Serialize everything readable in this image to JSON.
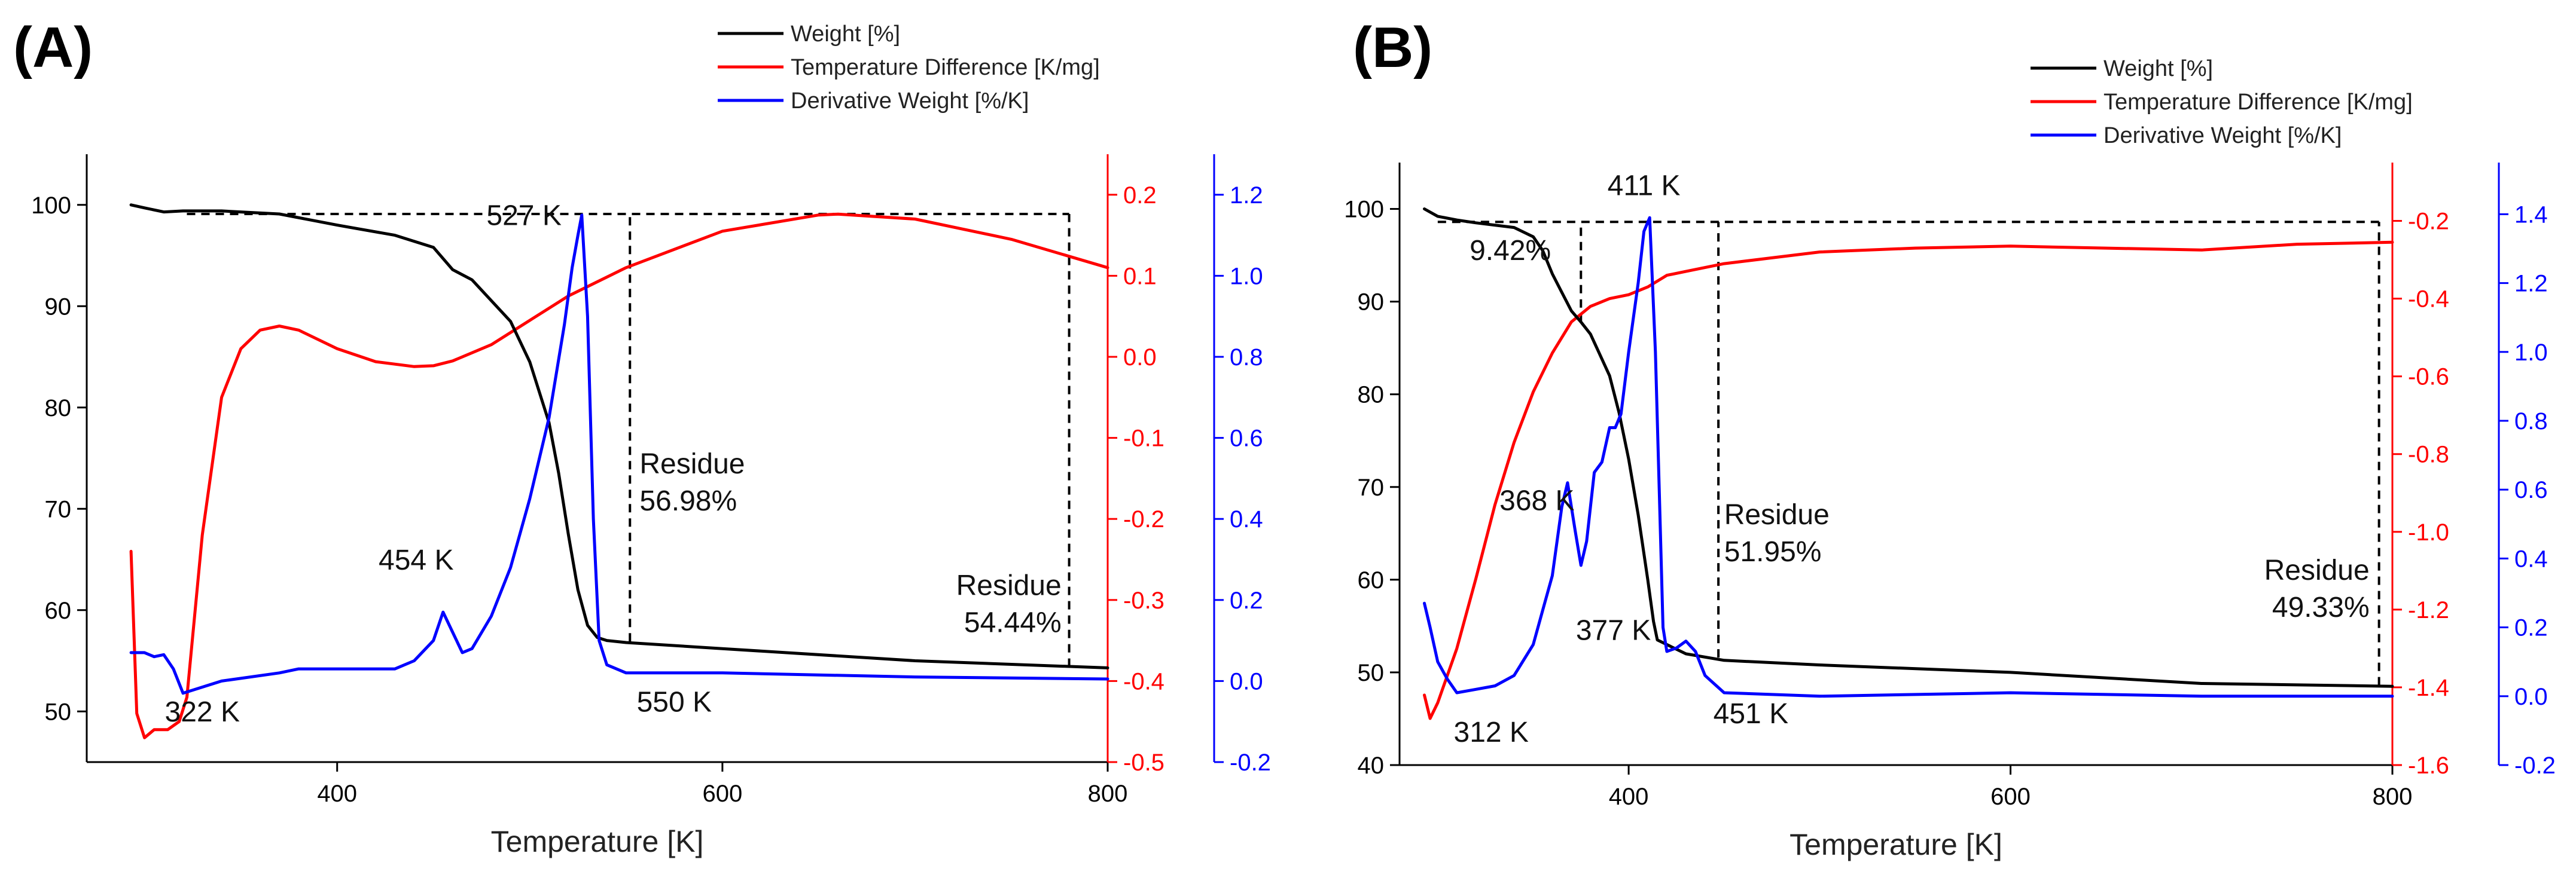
{
  "chart_data": [
    {
      "panel": "(A)",
      "type": "line",
      "xlabel": "Temperature [K]",
      "xlim": [
        270,
        800
      ],
      "xticks": [
        400,
        600,
        800
      ],
      "axes": {
        "weight": {
          "range": [
            45,
            105
          ],
          "ticks": [
            50,
            60,
            70,
            80,
            90,
            100
          ],
          "color": "#000000"
        },
        "tempdiff": {
          "range": [
            -0.5,
            0.25
          ],
          "ticks": [
            -0.5,
            -0.4,
            -0.3,
            -0.2,
            -0.1,
            0.0,
            0.1,
            0.2
          ],
          "color": "#ff0000"
        },
        "deriv": {
          "range": [
            -0.2,
            1.3
          ],
          "ticks": [
            -0.2,
            0.0,
            0.2,
            0.4,
            0.6,
            0.8,
            1.0,
            1.2
          ],
          "color": "#0000ff"
        }
      },
      "legend": [
        "Weight [%]",
        "Temperature Difference [K/mg]",
        "Derivative Weight [%/K]"
      ],
      "series": [
        {
          "name": "Weight [%]",
          "axis": "weight",
          "color": "#000000",
          "x": [
            293,
            300,
            310,
            320,
            340,
            370,
            400,
            430,
            450,
            460,
            470,
            490,
            500,
            510,
            515,
            520,
            525,
            530,
            535,
            540,
            550,
            600,
            700,
            800
          ],
          "y": [
            100,
            99.7,
            99.3,
            99.4,
            99.4,
            99.1,
            98.0,
            97.0,
            95.8,
            93.6,
            92.6,
            88.5,
            84.5,
            78.5,
            73.5,
            67.5,
            62.0,
            58.5,
            57.3,
            57.0,
            56.8,
            56.2,
            55.0,
            54.3
          ]
        },
        {
          "name": "Temperature Difference [K/mg]",
          "axis": "tempdiff",
          "color": "#ff0000",
          "x": [
            293,
            296,
            300,
            305,
            312,
            318,
            322,
            330,
            340,
            350,
            360,
            370,
            380,
            400,
            420,
            440,
            450,
            460,
            480,
            500,
            520,
            550,
            600,
            650,
            660,
            700,
            750,
            800
          ],
          "y": [
            -0.24,
            -0.44,
            -0.47,
            -0.46,
            -0.46,
            -0.45,
            -0.42,
            -0.22,
            -0.05,
            0.01,
            0.033,
            0.038,
            0.033,
            0.01,
            -0.006,
            -0.012,
            -0.011,
            -0.005,
            0.015,
            0.045,
            0.075,
            0.11,
            0.155,
            0.175,
            0.176,
            0.17,
            0.145,
            0.11
          ]
        },
        {
          "name": "Derivative Weight [%/K]",
          "axis": "deriv",
          "color": "#0000ff",
          "x": [
            293,
            300,
            305,
            310,
            315,
            320,
            340,
            370,
            380,
            400,
            430,
            440,
            450,
            455,
            460,
            465,
            470,
            480,
            490,
            500,
            510,
            518,
            522,
            525,
            527,
            530,
            533,
            536,
            540,
            550,
            600,
            700,
            800
          ],
          "y": [
            0.07,
            0.07,
            0.06,
            0.065,
            0.03,
            -0.03,
            0.0,
            0.02,
            0.03,
            0.03,
            0.03,
            0.05,
            0.1,
            0.17,
            0.12,
            0.07,
            0.08,
            0.16,
            0.28,
            0.45,
            0.65,
            0.88,
            1.02,
            1.1,
            1.15,
            0.9,
            0.4,
            0.1,
            0.04,
            0.02,
            0.02,
            0.01,
            0.005
          ]
        }
      ],
      "guides": [
        {
          "kind": "h",
          "axis": "weight",
          "y": 99.1,
          "x0": 322,
          "x1": 780
        },
        {
          "kind": "v",
          "axis": "weight",
          "x": 552,
          "y0": 56.9,
          "y1": 99.1
        },
        {
          "kind": "v",
          "axis": "weight",
          "x": 780,
          "y0": 54.4,
          "y1": 99.1
        }
      ],
      "annotations": [
        {
          "lines": [
            "527 K"
          ],
          "x": 497,
          "y": 98,
          "anchor": "middle"
        },
        {
          "lines": [
            "454 K"
          ],
          "x": 441,
          "y": 64,
          "anchor": "middle"
        },
        {
          "lines": [
            "322 K"
          ],
          "x": 330,
          "y": 49,
          "anchor": "middle"
        },
        {
          "lines": [
            "550 K"
          ],
          "x": 575,
          "y": 50,
          "anchor": "middle"
        },
        {
          "lines": [
            "Residue",
            "56.98%"
          ],
          "x": 557,
          "y": 73.5,
          "anchor": "start"
        },
        {
          "lines": [
            "Residue",
            "54.44%"
          ],
          "x": 776,
          "y": 61.5,
          "anchor": "end"
        }
      ]
    },
    {
      "panel": "(B)",
      "type": "line",
      "xlabel": "Temperature [K]",
      "xlim": [
        280,
        800
      ],
      "xticks": [
        400,
        600,
        800
      ],
      "axes": {
        "weight": {
          "range": [
            40,
            105
          ],
          "ticks": [
            40,
            50,
            60,
            70,
            80,
            90,
            100
          ],
          "color": "#000000"
        },
        "tempdiff": {
          "range": [
            -1.6,
            -0.05
          ],
          "ticks": [
            -1.6,
            -1.4,
            -1.2,
            -1.0,
            -0.8,
            -0.6,
            -0.4,
            -0.2
          ],
          "color": "#ff0000"
        },
        "deriv": {
          "range": [
            -0.2,
            1.55
          ],
          "ticks": [
            -0.2,
            0.0,
            0.2,
            0.4,
            0.6,
            0.8,
            1.0,
            1.2,
            1.4
          ],
          "color": "#0000ff"
        }
      },
      "legend": [
        "Weight [%]",
        "Temperature Difference [K/mg]",
        "Derivative Weight [%/K]"
      ],
      "series": [
        {
          "name": "Weight [%]",
          "axis": "weight",
          "color": "#000000",
          "x": [
            293,
            300,
            310,
            320,
            340,
            350,
            355,
            360,
            365,
            370,
            375,
            380,
            390,
            395,
            400,
            405,
            410,
            413,
            415,
            420,
            430,
            450,
            500,
            600,
            700,
            800
          ],
          "y": [
            100,
            99.2,
            98.8,
            98.5,
            98.0,
            97.0,
            95.5,
            93.0,
            91.0,
            89.0,
            87.8,
            86.5,
            82.0,
            78.0,
            73.0,
            67.0,
            60.0,
            55.5,
            53.5,
            53.0,
            52.0,
            51.3,
            50.8,
            50.0,
            48.8,
            48.5
          ]
        },
        {
          "name": "Temperature Difference [K/mg]",
          "axis": "tempdiff",
          "color": "#ff0000",
          "x": [
            293,
            296,
            300,
            310,
            320,
            330,
            340,
            350,
            360,
            370,
            380,
            390,
            400,
            410,
            420,
            430,
            450,
            500,
            550,
            600,
            650,
            700,
            750,
            800
          ],
          "y": [
            -1.42,
            -1.48,
            -1.44,
            -1.3,
            -1.12,
            -0.93,
            -0.77,
            -0.64,
            -0.54,
            -0.46,
            -0.42,
            -0.4,
            -0.39,
            -0.37,
            -0.34,
            -0.33,
            -0.31,
            -0.28,
            -0.27,
            -0.265,
            -0.27,
            -0.275,
            -0.26,
            -0.255
          ]
        },
        {
          "name": "Derivative Weight [%/K]",
          "axis": "deriv",
          "color": "#0000ff",
          "x": [
            293,
            296,
            300,
            305,
            310,
            320,
            330,
            340,
            350,
            355,
            360,
            365,
            368,
            372,
            375,
            378,
            382,
            386,
            390,
            393,
            396,
            400,
            405,
            408,
            411,
            414,
            416,
            418,
            420,
            425,
            430,
            435,
            440,
            450,
            500,
            600,
            700,
            800
          ],
          "y": [
            0.27,
            0.2,
            0.1,
            0.05,
            0.01,
            0.02,
            0.03,
            0.06,
            0.15,
            0.25,
            0.35,
            0.55,
            0.62,
            0.48,
            0.38,
            0.45,
            0.65,
            0.68,
            0.78,
            0.78,
            0.82,
            1.0,
            1.2,
            1.35,
            1.39,
            1.0,
            0.6,
            0.2,
            0.13,
            0.14,
            0.16,
            0.13,
            0.06,
            0.01,
            0.0,
            0.01,
            0.0,
            0.0
          ]
        }
      ],
      "guides": [
        {
          "kind": "h",
          "axis": "weight",
          "y": 98.6,
          "x0": 300,
          "x1": 793
        },
        {
          "kind": "v",
          "axis": "weight",
          "x": 375,
          "y0": 87.8,
          "y1": 98.6
        },
        {
          "kind": "v",
          "axis": "weight",
          "x": 447,
          "y0": 51.6,
          "y1": 98.6
        },
        {
          "kind": "v",
          "axis": "weight",
          "x": 793,
          "y0": 48.6,
          "y1": 98.6
        }
      ],
      "annotations": [
        {
          "lines": [
            "411 K"
          ],
          "x": 408,
          "y": 101.5,
          "anchor": "middle"
        },
        {
          "lines": [
            "9.42%"
          ],
          "x": 338,
          "y": 94.5,
          "anchor": "middle"
        },
        {
          "lines": [
            "368 K"
          ],
          "x": 352,
          "y": 67.5,
          "anchor": "middle"
        },
        {
          "lines": [
            "377 K"
          ],
          "x": 392,
          "y": 53.5,
          "anchor": "middle"
        },
        {
          "lines": [
            "312 K"
          ],
          "x": 328,
          "y": 42.5,
          "anchor": "middle"
        },
        {
          "lines": [
            "451 K"
          ],
          "x": 464,
          "y": 44.5,
          "anchor": "middle"
        },
        {
          "lines": [
            "Residue",
            "51.95%"
          ],
          "x": 450,
          "y": 66,
          "anchor": "start"
        },
        {
          "lines": [
            "Residue",
            "49.33%"
          ],
          "x": 788,
          "y": 60,
          "anchor": "end"
        }
      ]
    }
  ]
}
